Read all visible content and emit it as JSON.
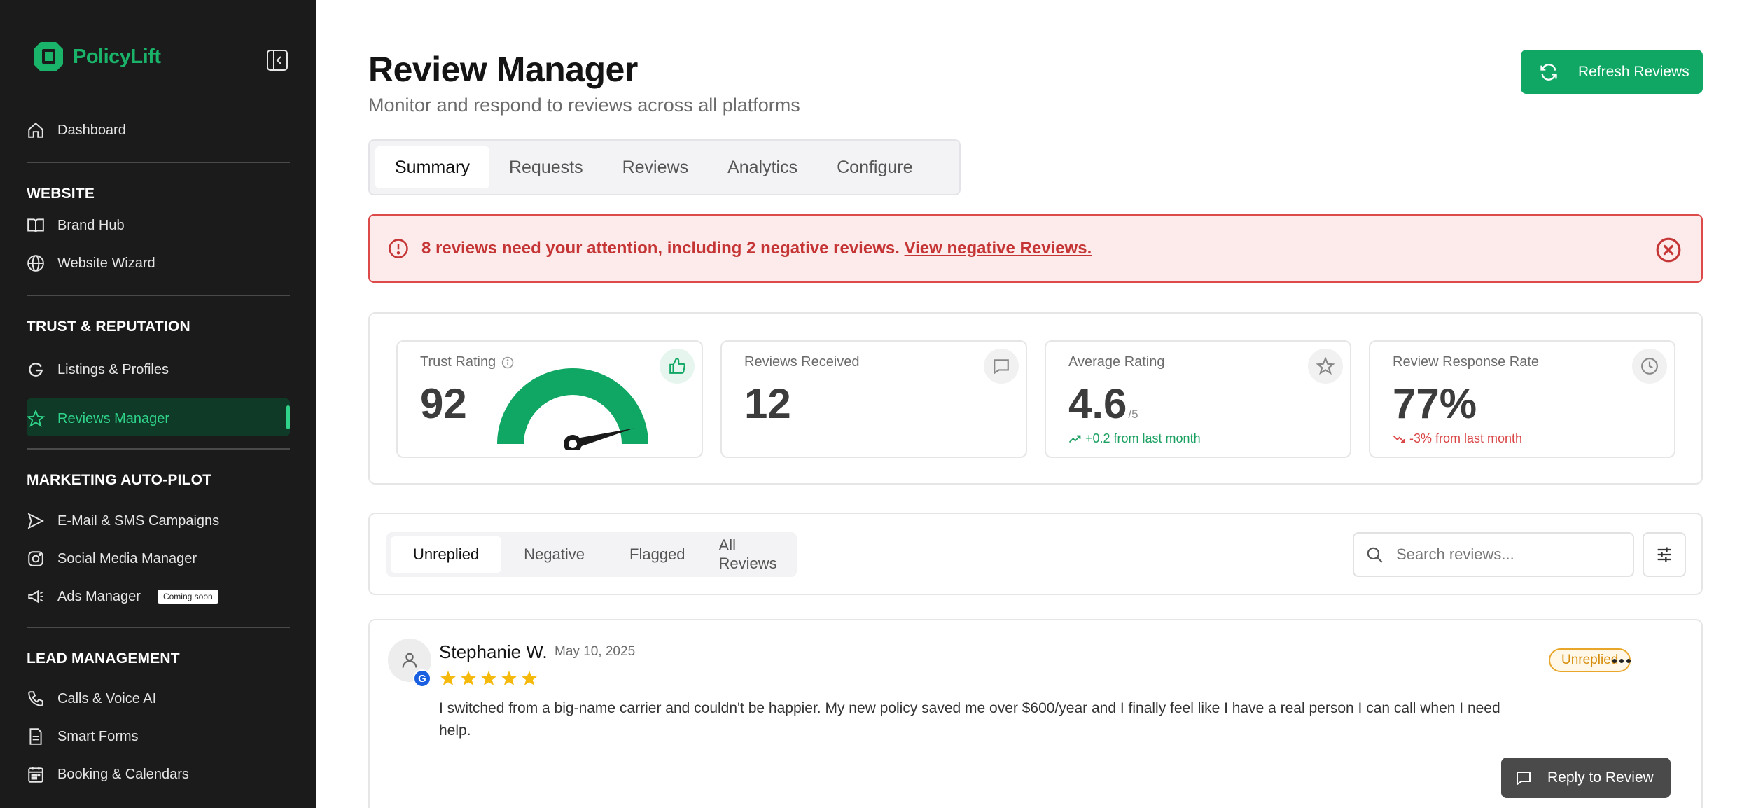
{
  "brand": {
    "name": "PolicyLift",
    "color": "#19b36a"
  },
  "sidebar": {
    "dashboard": "Dashboard",
    "sections": [
      {
        "heading": "WEBSITE",
        "items": [
          "Brand Hub",
          "Website Wizard"
        ]
      },
      {
        "heading": "TRUST & REPUTATION",
        "items": [
          "Listings & Profiles",
          "Reviews Manager"
        ]
      },
      {
        "heading": "MARKETING AUTO-PILOT",
        "items": [
          "E-Mail & SMS Campaigns",
          "Social Media Manager",
          "Ads Manager"
        ]
      },
      {
        "heading": "LEAD MANAGEMENT",
        "items": [
          "Calls & Voice AI",
          "Smart Forms",
          "Booking & Calendars"
        ]
      }
    ],
    "active_item": "Reviews Manager",
    "coming_soon_badge": "Coming soon"
  },
  "header": {
    "title": "Review Manager",
    "subtitle": "Monitor and respond to reviews across all platforms",
    "refresh_label": "Refresh Reviews"
  },
  "tabs": [
    "Summary",
    "Requests",
    "Reviews",
    "Analytics",
    "Configure"
  ],
  "active_tab": "Summary",
  "alert": {
    "text": "8 reviews need your attention, including 2 negative reviews. ",
    "link": "View negative Reviews."
  },
  "stats": {
    "trust": {
      "label": "Trust Rating",
      "value": "92",
      "gauge_fraction": 0.92
    },
    "received": {
      "label": "Reviews Received",
      "value": "12"
    },
    "average": {
      "label": "Average Rating",
      "value": "4.6",
      "suffix": "/5",
      "delta": "+0.2 from last month"
    },
    "response": {
      "label": "Review Response Rate",
      "value": "77%",
      "delta": "-3% from last month"
    }
  },
  "filters": {
    "tabs": [
      "Unreplied",
      "Negative",
      "Flagged",
      "All Reviews"
    ],
    "active": "Unreplied",
    "search_placeholder": "Search reviews..."
  },
  "review": {
    "name": "Stephanie W.",
    "date": "May 10, 2025",
    "rating": 5,
    "source_letter": "G",
    "status": "Unreplied",
    "text": "I switched from a big-name carrier and couldn't be happier. My new policy saved me over $600/year and I finally feel like I have a real person I can call when I need help.",
    "reply_label": "Reply to Review"
  },
  "colors": {
    "accent": "#0fa763",
    "alert_bg": "#fdeaea",
    "alert_text": "#c53535",
    "star": "#f5b90b",
    "pill": "#e8a72a"
  }
}
